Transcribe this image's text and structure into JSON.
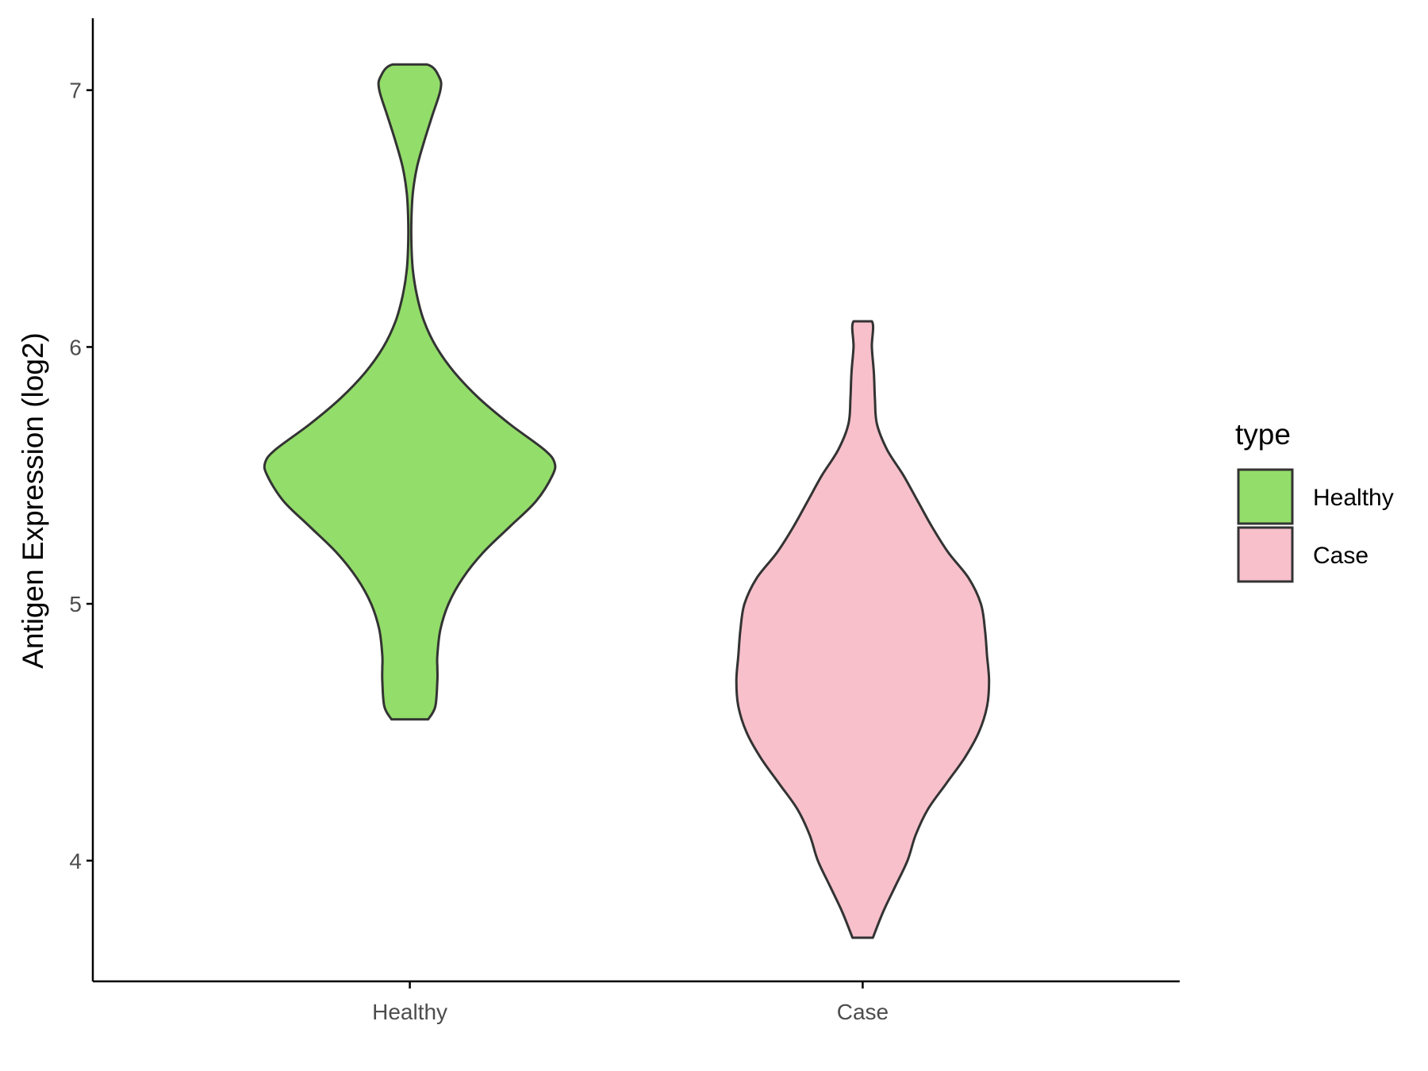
{
  "chart_data": {
    "type": "violin",
    "title": "",
    "xlabel": "",
    "ylabel": "Antigen Expression (log2)",
    "categories": [
      "Healthy",
      "Case"
    ],
    "ylim": [
      3.53,
      7.28
    ],
    "yticks": [
      4,
      5,
      6,
      7
    ],
    "grid": false,
    "legend": {
      "title": "type",
      "placement": "right",
      "entries": [
        {
          "label": "Healthy",
          "color": "#93dd6a"
        },
        {
          "label": "Case",
          "color": "#f7c0cb"
        }
      ]
    },
    "outline_color": "#333333",
    "series": [
      {
        "category": "Healthy",
        "color": "#93dd6a",
        "density": [
          [
            4.55,
            0.09
          ],
          [
            4.6,
            0.125
          ],
          [
            4.7,
            0.135
          ],
          [
            4.75,
            0.135
          ],
          [
            4.8,
            0.135
          ],
          [
            4.9,
            0.15
          ],
          [
            5.0,
            0.19
          ],
          [
            5.1,
            0.26
          ],
          [
            5.2,
            0.36
          ],
          [
            5.3,
            0.49
          ],
          [
            5.4,
            0.62
          ],
          [
            5.5,
            0.7
          ],
          [
            5.55,
            0.71
          ],
          [
            5.6,
            0.66
          ],
          [
            5.7,
            0.49
          ],
          [
            5.8,
            0.34
          ],
          [
            5.9,
            0.22
          ],
          [
            6.0,
            0.13
          ],
          [
            6.1,
            0.07
          ],
          [
            6.2,
            0.035
          ],
          [
            6.3,
            0.015
          ],
          [
            6.4,
            0.008
          ],
          [
            6.5,
            0.008
          ],
          [
            6.6,
            0.015
          ],
          [
            6.7,
            0.035
          ],
          [
            6.8,
            0.07
          ],
          [
            6.9,
            0.11
          ],
          [
            7.0,
            0.15
          ],
          [
            7.05,
            0.145
          ],
          [
            7.1,
            0.085
          ]
        ]
      },
      {
        "category": "Case",
        "color": "#f7c0cb",
        "density": [
          [
            3.7,
            0.05
          ],
          [
            3.8,
            0.1
          ],
          [
            3.9,
            0.16
          ],
          [
            4.0,
            0.22
          ],
          [
            4.1,
            0.26
          ],
          [
            4.2,
            0.32
          ],
          [
            4.3,
            0.41
          ],
          [
            4.4,
            0.5
          ],
          [
            4.5,
            0.57
          ],
          [
            4.6,
            0.61
          ],
          [
            4.7,
            0.62
          ],
          [
            4.8,
            0.61
          ],
          [
            4.9,
            0.6
          ],
          [
            5.0,
            0.58
          ],
          [
            5.1,
            0.52
          ],
          [
            5.2,
            0.42
          ],
          [
            5.3,
            0.34
          ],
          [
            5.4,
            0.27
          ],
          [
            5.5,
            0.2
          ],
          [
            5.6,
            0.12
          ],
          [
            5.7,
            0.07
          ],
          [
            5.8,
            0.06
          ],
          [
            5.9,
            0.055
          ],
          [
            6.0,
            0.045
          ],
          [
            6.1,
            0.045
          ]
        ]
      }
    ]
  }
}
